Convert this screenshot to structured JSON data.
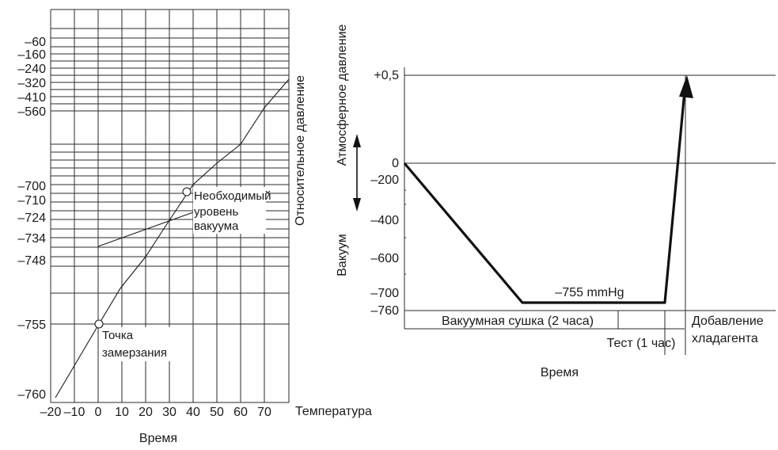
{
  "chart_data": [
    {
      "type": "line",
      "title": "",
      "x_axis": {
        "label": "Температура",
        "ticks": [
          "–20",
          "–10",
          "0",
          "10",
          "20",
          "30",
          "40",
          "50",
          "60",
          "70"
        ],
        "range": [
          -20,
          80
        ]
      },
      "y_axis": {
        "label": "Относительное давление",
        "ticks": [
          "–60",
          "–160",
          "–240",
          "–320",
          "–410",
          "–560",
          "–700",
          "–710",
          "–724",
          "–734",
          "–748",
          "–755",
          "–760"
        ]
      },
      "bottom_label": "Время",
      "series": [
        {
          "x": [
            -18,
            1,
            10,
            20,
            30,
            40,
            50,
            60,
            70,
            80
          ],
          "y": [
            -760,
            -755,
            -748,
            -734,
            -724,
            -700,
            -650,
            -560,
            -410,
            -320
          ]
        },
        {
          "x": [
            0,
            40
          ],
          "y": [
            -744,
            -710
          ]
        }
      ],
      "annotations": [
        {
          "text": "Необходимый\nуровень\nвакуума",
          "x": 38,
          "y": -700
        },
        {
          "text": "Точка\nзамерзания",
          "x": 1,
          "y": -755
        }
      ]
    },
    {
      "type": "line",
      "title": "",
      "x_axis": {
        "label": "Время",
        "phases": [
          "Вакуумная сушка (2 часа)",
          "Тест (1 час)",
          "Добавление\nхладагента"
        ]
      },
      "y_axis": {
        "ticks": [
          "+0,5",
          "0",
          "–200",
          "–400",
          "–600",
          "–700",
          "–760"
        ],
        "labels": [
          "Атмосферное давление",
          "Вакуум"
        ]
      },
      "series": [
        {
          "points": [
            [
              0,
              0
            ],
            [
              2,
              -755
            ],
            [
              3,
              -755
            ],
            [
              3.3,
              0.5
            ]
          ]
        }
      ],
      "annotations": [
        {
          "text": "–755 mmHg"
        }
      ]
    }
  ],
  "left_chart": {
    "y_tick_labels": [
      "–60",
      "–160",
      "–240",
      "–320",
      "–410",
      "–560",
      "–700",
      "–710",
      "–724",
      "–734",
      "–748",
      "–755",
      "–760"
    ],
    "x_tick_labels": [
      "–20",
      "–10",
      "0",
      "10",
      "20",
      "30",
      "40",
      "50",
      "60",
      "70"
    ],
    "x_label": "Температура",
    "y_label": "Относительное давление",
    "bottom_label": "Время",
    "annotation_required": [
      "Необходимый",
      "уровень",
      "вакуума"
    ],
    "annotation_freezing": [
      "Точка",
      "замерзания"
    ]
  },
  "right_chart": {
    "y_tick_labels": [
      "+0,5",
      "0",
      "–200",
      "–400",
      "–600",
      "–700",
      "–760"
    ],
    "y_label_atm": "Атмосферное давление",
    "y_label_vac": "Вакуум",
    "annotation": "–755 mmHg",
    "phase_drying": "Вакуумная сушка (2 часа)",
    "phase_test": "Тест (1 час)",
    "phase_charge": [
      "Добавление",
      "хладагента"
    ],
    "x_label": "Время"
  }
}
